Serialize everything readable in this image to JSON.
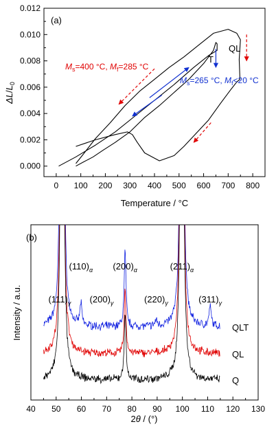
{
  "chart_data": [
    {
      "type": "line",
      "panel_label": "(a)",
      "xlabel": "Temperature / °C",
      "ylabel": "ΔL/L0",
      "xlim": [
        -50,
        850
      ],
      "ylim": [
        -0.0008,
        0.012
      ],
      "xticks": [
        "0",
        "100",
        "200",
        "300",
        "400",
        "500",
        "600",
        "700",
        "800"
      ],
      "yticks": [
        "0.000",
        "0.002",
        "0.004",
        "0.006",
        "0.008",
        "0.010",
        "0.012"
      ],
      "colors": {
        "ql": "#e00000",
        "t": "#1030d0",
        "curve": "#000000"
      },
      "series": [
        {
          "name": "QL",
          "x": [
            80,
            160,
            240,
            290,
            310,
            330,
            360,
            420,
            480,
            520,
            560,
            620,
            670,
            710,
            735,
            748,
            745,
            750,
            735,
            700,
            640,
            580,
            520,
            460,
            400,
            340,
            280,
            220,
            160,
            110,
            80
          ],
          "y": [
            0.0015,
            0.002,
            0.0024,
            0.0026,
            0.0024,
            0.0018,
            0.001,
            0.0004,
            0.0008,
            0.0015,
            0.0023,
            0.0035,
            0.0048,
            0.0058,
            0.0064,
            0.0066,
            0.0081,
            0.0096,
            0.0101,
            0.0104,
            0.0101,
            0.0092,
            0.0083,
            0.0075,
            0.0066,
            0.0057,
            0.0046,
            0.0033,
            0.0021,
            0.0009,
            0.0002
          ]
        },
        {
          "name": "T",
          "x": [
            10,
            80,
            160,
            240,
            320,
            400,
            480,
            560,
            620,
            655,
            655,
            650,
            640,
            600,
            540,
            480,
            420,
            360,
            300,
            240,
            190,
            150,
            110,
            80
          ],
          "y": [
            0.0,
            0.0007,
            0.0016,
            0.0026,
            0.0038,
            0.005,
            0.0062,
            0.0075,
            0.0084,
            0.0088,
            0.0093,
            0.0094,
            0.0088,
            0.0078,
            0.0066,
            0.0056,
            0.0046,
            0.0037,
            0.0026,
            0.0018,
            0.0012,
            0.0007,
            0.0003,
            0.0
          ]
        }
      ],
      "arrows": [
        {
          "color": "ql",
          "dashed": true,
          "x": [
            400,
            255
          ],
          "y": [
            0.0074,
            0.0047
          ]
        },
        {
          "color": "ql",
          "dashed": true,
          "x": [
            775,
            775
          ],
          "y": [
            0.01,
            0.008
          ]
        },
        {
          "color": "ql",
          "dashed": true,
          "x": [
            630,
            560
          ],
          "y": [
            0.0033,
            0.0018
          ]
        },
        {
          "color": "t",
          "dashed": false,
          "x": [
            380,
            540
          ],
          "y": [
            0.0052,
            0.0075
          ]
        },
        {
          "color": "t",
          "dashed": false,
          "x": [
            650,
            650
          ],
          "y": [
            0.0089,
            0.0075
          ]
        },
        {
          "color": "t",
          "dashed": false,
          "x": [
            430,
            310
          ],
          "y": [
            0.0054,
            0.0038
          ]
        }
      ],
      "annotations": {
        "ql_label": "QL",
        "t_label": "T",
        "ql_temps": {
          "ms_value": "=400 °C, ",
          "mf_value": "=285 °C"
        },
        "t_temps": {
          "ms_value": "=265 °C, ",
          "mf_value": "<20 °C"
        }
      }
    },
    {
      "type": "line",
      "panel_label": "(b)",
      "xlabel": "2θ / (°)",
      "ylabel": "Intensity / a.u.",
      "xlim": [
        40,
        130
      ],
      "xticks": [
        "40",
        "50",
        "60",
        "70",
        "80",
        "90",
        "100",
        "110",
        "120",
        "130"
      ],
      "colors": {
        "QLT": "#1020e0",
        "QL": "#e00000",
        "Q": "#000000"
      },
      "series": [
        {
          "name": "QLT",
          "offset": 2.1,
          "x_start": 45,
          "x_end": 115,
          "peaks": [
            [
              51.4,
              0.9,
              0.5
            ],
            [
              52.4,
              40,
              0.45
            ],
            [
              59.8,
              0.95,
              0.45
            ],
            [
              77.3,
              3.4,
              0.42
            ],
            [
              89.6,
              0.25,
              0.5
            ],
            [
              99.8,
              40,
              0.45
            ],
            [
              111.0,
              0.85,
              0.5
            ]
          ]
        },
        {
          "name": "QL",
          "offset": 1.07,
          "x_start": 45,
          "x_end": 115,
          "peaks": [
            [
              52.4,
              40,
              0.45
            ],
            [
              77.3,
              2.9,
              0.42
            ],
            [
              99.8,
              40,
              0.45
            ]
          ]
        },
        {
          "name": "Q",
          "offset": 0.0,
          "x_start": 45,
          "x_end": 115,
          "peaks": [
            [
              52.4,
              40,
              0.45
            ],
            [
              77.3,
              3.0,
              0.42
            ],
            [
              99.8,
              40,
              0.45
            ]
          ]
        }
      ],
      "peak_labels": [
        {
          "hkl": "(111)",
          "phase": "γ",
          "x": 51.4
        },
        {
          "hkl": "(110)",
          "phase": "α",
          "x": 59.8
        },
        {
          "hkl": "(200)",
          "phase": "γ",
          "x": 68.0
        },
        {
          "hkl": "(200)",
          "phase": "α",
          "x": 77.3
        },
        {
          "hkl": "(220)",
          "phase": "γ",
          "x": 89.6
        },
        {
          "hkl": "(211)",
          "phase": "α",
          "x": 99.8
        },
        {
          "hkl": "(311)",
          "phase": "γ",
          "x": 111.0
        }
      ]
    }
  ]
}
